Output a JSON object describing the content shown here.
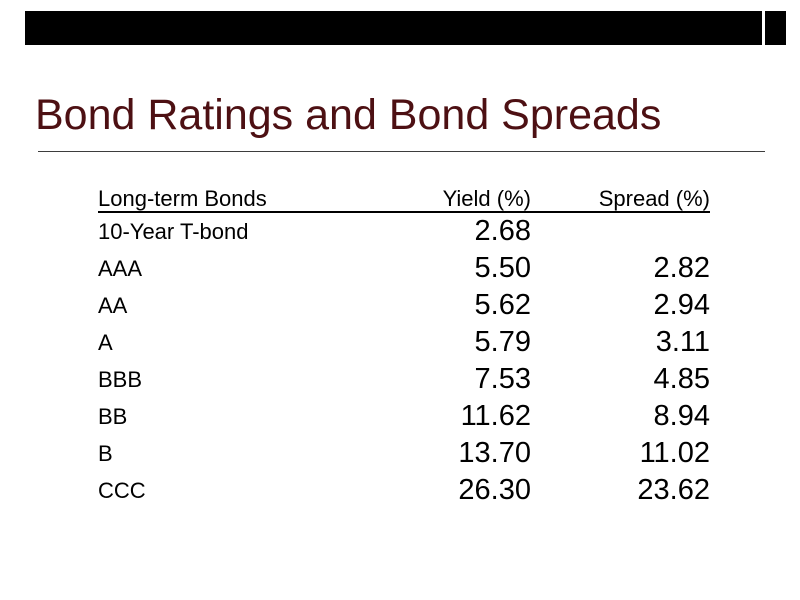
{
  "slide": {
    "title": "Bond Ratings and Bond Spreads"
  },
  "table": {
    "headers": [
      "Long-term Bonds",
      "Yield (%)",
      "Spread (%)"
    ],
    "rows": [
      {
        "label": "10-Year T-bond",
        "yield": "2.68",
        "spread": ""
      },
      {
        "label": "AAA",
        "yield": "5.50",
        "spread": "2.82"
      },
      {
        "label": "AA",
        "yield": "5.62",
        "spread": "2.94"
      },
      {
        "label": "A",
        "yield": "5.79",
        "spread": "3.11"
      },
      {
        "label": "BBB",
        "yield": "7.53",
        "spread": "4.85"
      },
      {
        "label": "BB",
        "yield": "11.62",
        "spread": "8.94"
      },
      {
        "label": "B",
        "yield": "13.70",
        "spread": "11.02"
      },
      {
        "label": "CCC",
        "yield": "26.30",
        "spread": "23.62"
      }
    ]
  },
  "chart_data": {
    "type": "table",
    "title": "Bond Ratings and Bond Spreads",
    "columns": [
      "Long-term Bonds",
      "Yield (%)",
      "Spread (%)"
    ],
    "rows": [
      [
        "10-Year T-bond",
        2.68,
        null
      ],
      [
        "AAA",
        5.5,
        2.82
      ],
      [
        "AA",
        5.62,
        2.94
      ],
      [
        "A",
        5.79,
        3.11
      ],
      [
        "BBB",
        7.53,
        4.85
      ],
      [
        "BB",
        11.62,
        8.94
      ],
      [
        "B",
        13.7,
        11.02
      ],
      [
        "CCC",
        26.3,
        23.62
      ]
    ]
  },
  "colors": {
    "title_text": "#4d1013",
    "top_bar": "#000000",
    "table_text": "#000000",
    "divider": "#3d3d3d"
  }
}
